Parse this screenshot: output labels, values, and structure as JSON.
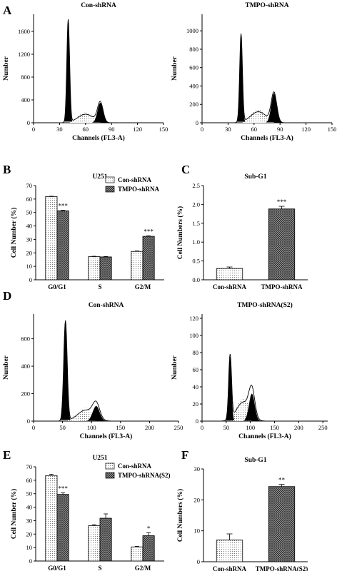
{
  "chart_data": [
    {
      "panel": "A",
      "type": "histogram",
      "title": "Con-shRNA",
      "xlabel": "Channels (FL3-A)",
      "ylabel": "Number",
      "xlim": [
        0,
        150
      ],
      "ylim": [
        0,
        1900
      ],
      "xticks": [
        0,
        30,
        60,
        90,
        120,
        150
      ],
      "yticks": [
        0,
        400,
        800,
        1200,
        1600
      ],
      "peaks": [
        {
          "name": "G0/G1",
          "center": 40,
          "height": 1800
        },
        {
          "name": "S",
          "center": 60,
          "height": 150
        },
        {
          "name": "G2/M",
          "center": 77,
          "height": 350
        }
      ]
    },
    {
      "panel": "A",
      "type": "histogram",
      "title": "TMPO-shRNA",
      "xlabel": "Channels (FL3-A)",
      "ylabel": "Number",
      "xlim": [
        0,
        150
      ],
      "ylim": [
        0,
        1180
      ],
      "xticks": [
        0,
        30,
        60,
        90,
        120,
        150
      ],
      "yticks": [
        0,
        200,
        400,
        600,
        800,
        1000
      ],
      "peaks": [
        {
          "name": "G0/G1",
          "center": 45,
          "height": 960
        },
        {
          "name": "S",
          "center": 65,
          "height": 120
        },
        {
          "name": "G2/M",
          "center": 83,
          "height": 320
        }
      ]
    },
    {
      "panel": "B",
      "type": "bar",
      "title": "U251",
      "categories": [
        "G0/G1",
        "S",
        "G2/M"
      ],
      "series": [
        {
          "name": "Con-shRNA",
          "values": [
            61.8,
            17.2,
            21.1
          ],
          "errors": [
            0.3,
            0.3,
            0.3
          ]
        },
        {
          "name": "TMPO-shRNA",
          "values": [
            51.3,
            17.0,
            32.3
          ],
          "errors": [
            0.4,
            0.3,
            0.4
          ]
        }
      ],
      "significance": [
        "***",
        "",
        "***"
      ],
      "ylabel": "Cell Number (%)",
      "ylim": [
        0,
        70
      ],
      "yticks": [
        0,
        10,
        20,
        30,
        40,
        50,
        60,
        70
      ],
      "legend": "top-right"
    },
    {
      "panel": "C",
      "type": "bar",
      "title": "Sub-G1",
      "categories": [
        "Con-shRNA",
        "TMPO-shRNA"
      ],
      "values": [
        0.3,
        1.88
      ],
      "errors": [
        0.04,
        0.07
      ],
      "significance": [
        "",
        "***"
      ],
      "ylabel": "Cell Numbers (%)",
      "ylim": [
        0,
        2.5
      ],
      "yticks": [
        0.0,
        0.5,
        1.0,
        1.5,
        2.0,
        2.5
      ]
    },
    {
      "panel": "D",
      "type": "histogram",
      "title": "Con-shRNA",
      "xlabel": "Channels (FL3-A)",
      "ylabel": "Number",
      "xlim": [
        0,
        250
      ],
      "ylim": [
        0,
        780
      ],
      "xticks": [
        0,
        50,
        100,
        150,
        200,
        250
      ],
      "yticks": [
        0,
        200,
        400,
        600
      ],
      "peaks": [
        {
          "name": "G0/G1",
          "center": 55,
          "height": 730
        },
        {
          "name": "S",
          "center": 90,
          "height": 80
        },
        {
          "name": "G2/M",
          "center": 108,
          "height": 110
        }
      ]
    },
    {
      "panel": "D",
      "type": "histogram",
      "title": "TMPO-shRNA(S2)",
      "xlabel": "Channels (FL3-A)",
      "ylabel": "Number",
      "xlim": [
        0,
        260
      ],
      "ylim": [
        0,
        125
      ],
      "xticks": [
        0,
        50,
        100,
        150,
        200,
        250
      ],
      "yticks": [
        0,
        20,
        40,
        60,
        80,
        100,
        120
      ],
      "peaks": [
        {
          "name": "G0/G1",
          "center": 58,
          "height": 75
        },
        {
          "name": "S",
          "center": 85,
          "height": 22
        },
        {
          "name": "G2/M",
          "center": 103,
          "height": 32
        }
      ]
    },
    {
      "panel": "E",
      "type": "bar",
      "title": "U251",
      "categories": [
        "G0/G1",
        "S",
        "G2/M"
      ],
      "series": [
        {
          "name": "Con-shRNA",
          "values": [
            63.5,
            26.2,
            10.5
          ],
          "errors": [
            1.0,
            0.8,
            0.4
          ]
        },
        {
          "name": "TMPO-shRNA(S2)",
          "values": [
            49.5,
            31.8,
            18.8
          ],
          "errors": [
            1.2,
            3.2,
            2.2
          ]
        }
      ],
      "significance": [
        "***",
        "",
        "*"
      ],
      "ylabel": "Cell Number (%)",
      "ylim": [
        0,
        70
      ],
      "yticks": [
        0,
        10,
        20,
        30,
        40,
        50,
        60,
        70
      ],
      "legend": "top-right"
    },
    {
      "panel": "F",
      "type": "bar",
      "title": "Sub-G1",
      "categories": [
        "Con-shRNA",
        "TMPO-shRNA(S2)"
      ],
      "values": [
        7.0,
        24.3
      ],
      "errors": [
        2.0,
        0.7
      ],
      "significance": [
        "",
        "**"
      ],
      "ylabel": "Cell Numbers (%)",
      "ylim": [
        0,
        30
      ],
      "yticks": [
        0,
        10,
        20,
        30
      ]
    }
  ]
}
